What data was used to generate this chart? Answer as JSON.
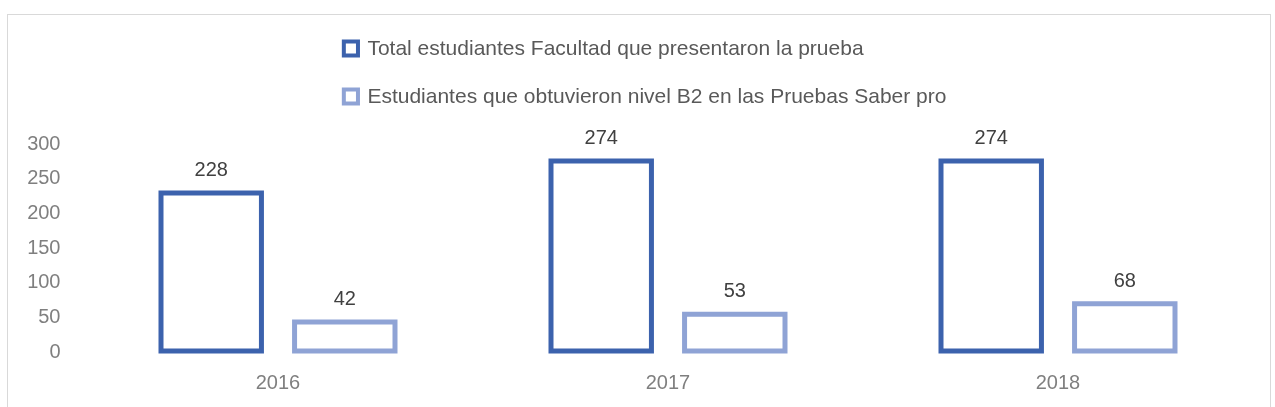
{
  "chart_data": {
    "type": "bar",
    "categories": [
      "2016",
      "2017",
      "2018"
    ],
    "series": [
      {
        "name": "Total estudiantes Facultad que presentaron la prueba",
        "color": "#3c62ad",
        "values": [
          228,
          274,
          274
        ]
      },
      {
        "name": "Estudiantes que obtuvieron nivel B2 en las Pruebas Saber pro",
        "color": "#8fa3d5",
        "values": [
          42,
          53,
          68
        ]
      }
    ],
    "ylim": [
      0,
      300
    ],
    "yticks": [
      0,
      50,
      100,
      150,
      200,
      250,
      300
    ],
    "data_labels": true,
    "legend": "top",
    "grid": false
  }
}
